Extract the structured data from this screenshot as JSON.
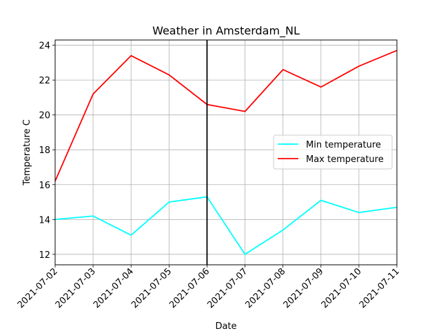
{
  "chart_data": {
    "type": "line",
    "title": "Weather in Amsterdam_NL",
    "xlabel": "Date",
    "ylabel": "Temperature C",
    "categories": [
      "2021-07-02",
      "2021-07-03",
      "2021-07-04",
      "2021-07-05",
      "2021-07-06",
      "2021-07-07",
      "2021-07-08",
      "2021-07-09",
      "2021-07-10",
      "2021-07-11"
    ],
    "series": [
      {
        "name": "Min temperature",
        "color": "#00ffff",
        "values": [
          14.0,
          14.2,
          13.1,
          15.0,
          15.3,
          12.0,
          13.4,
          15.1,
          14.4,
          14.7
        ]
      },
      {
        "name": "Max temperature",
        "color": "#ff0000",
        "values": [
          16.2,
          21.2,
          23.4,
          22.3,
          20.6,
          20.2,
          22.6,
          21.6,
          22.8,
          23.7
        ]
      }
    ],
    "ylim": [
      11.4,
      24.3
    ],
    "yticks": [
      12,
      14,
      16,
      18,
      20,
      22,
      24
    ],
    "grid": true,
    "legend_position": "center-right",
    "vertical_line": {
      "category": "2021-07-06",
      "color": "#000000"
    }
  }
}
